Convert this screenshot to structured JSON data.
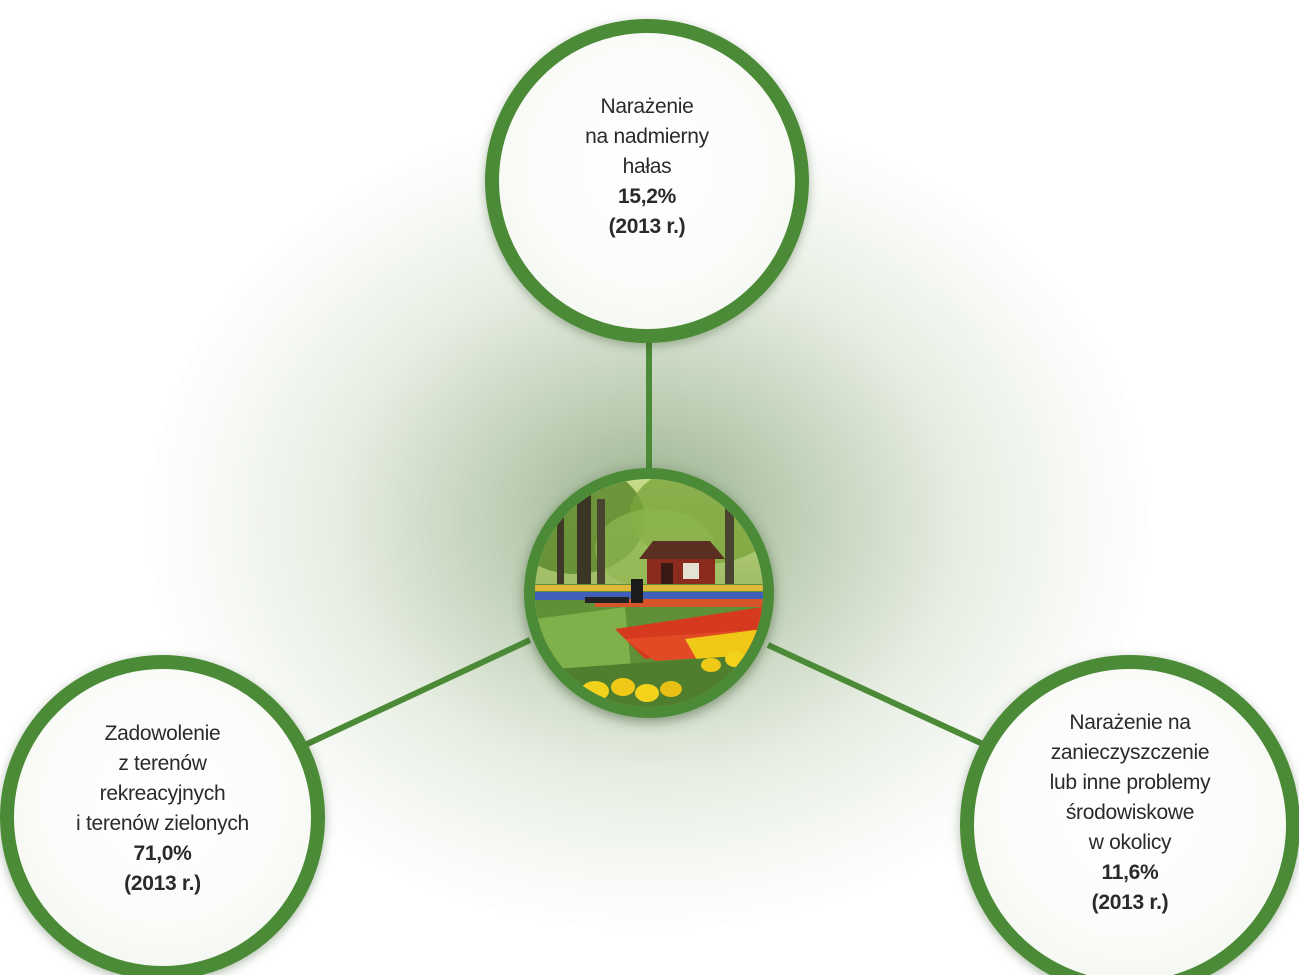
{
  "nodes": {
    "top": {
      "lines": [
        "Narażenie",
        "na nadmierny",
        "hałas"
      ],
      "value": "15,2%",
      "year": "(2013 r.)"
    },
    "left": {
      "lines": [
        "Zadowolenie",
        "z terenów",
        "rekreacyjnych",
        "i terenów zielonych"
      ],
      "value": "71,0%",
      "year": "(2013 r.)"
    },
    "right": {
      "lines": [
        "Narażenie na",
        "zanieczyszczenie",
        "lub inne problemy",
        "środowiskowe",
        "w okolicy"
      ],
      "value": "11,6%",
      "year": "(2013 r.)"
    }
  },
  "center_image": {
    "subject": "park-with-tulips-and-gazebo"
  },
  "colors": {
    "accent_green": "#4b8a36",
    "text": "#2a2a2a",
    "glow": "#5c8646"
  }
}
